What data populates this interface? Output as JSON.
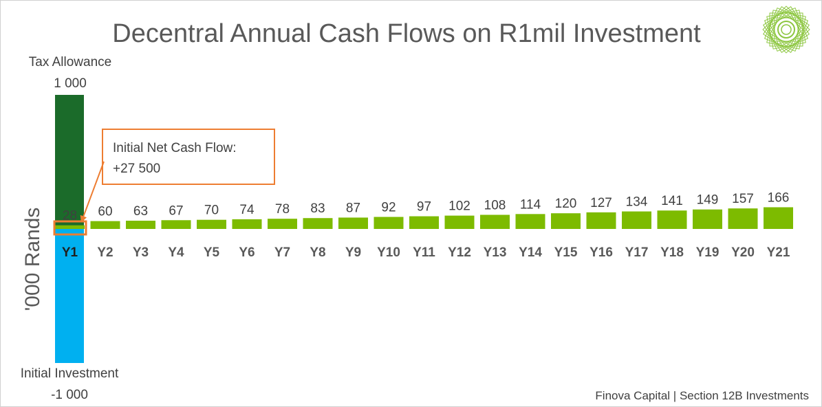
{
  "chart_data": {
    "type": "bar",
    "title": "Decentral Annual Cash Flows on R1mil Investment",
    "ylabel": "'000 Rands",
    "xlabel": "",
    "categories": [
      "Y1",
      "Y2",
      "Y3",
      "Y4",
      "Y5",
      "Y6",
      "Y7",
      "Y8",
      "Y9",
      "Y10",
      "Y11",
      "Y12",
      "Y13",
      "Y14",
      "Y15",
      "Y16",
      "Y17",
      "Y18",
      "Y19",
      "Y20",
      "Y21"
    ],
    "series": [
      {
        "values": [
          28,
          60,
          63,
          67,
          70,
          74,
          78,
          83,
          87,
          92,
          97,
          102,
          108,
          114,
          120,
          127,
          134,
          141,
          149,
          157,
          166
        ],
        "color": "#7dbb00"
      }
    ],
    "year1_breakdown": {
      "tax_allowance": {
        "label": "Tax Allowance",
        "value": 1000,
        "value_label": "1 000",
        "color": "#1b6b2a"
      },
      "initial_investment": {
        "label": "Initial Investment",
        "value": -1000,
        "value_label": "-1 000",
        "color": "#00b0f0"
      }
    },
    "annotation": {
      "line1": "Initial Net Cash Flow:",
      "line2": "+27 500",
      "color": "#ed7d31"
    },
    "ylim": [
      -1000,
      1000
    ],
    "grid": false,
    "legend": "none"
  },
  "footer": "Finova Capital | Section 12B Investments",
  "logo": {
    "icon": "green-mandala-logo-icon",
    "color": "#8cc63f"
  }
}
